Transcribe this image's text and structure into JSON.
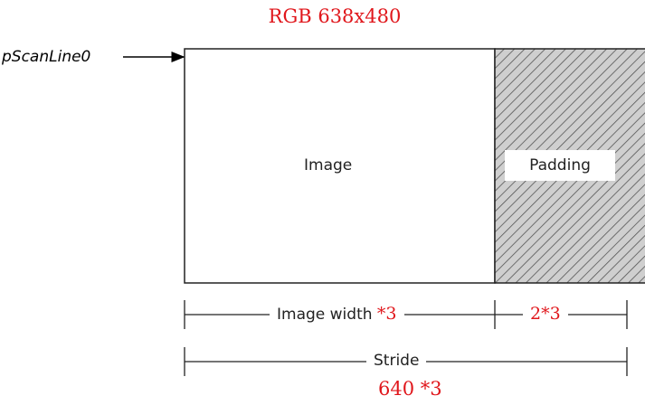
{
  "title": "RGB 638x480",
  "pointer_label": "pScanLine0",
  "regions": {
    "image_label": "Image",
    "padding_label": "Padding"
  },
  "dimensions": {
    "image_width_label": "Image width",
    "image_width_multiplier": "*3",
    "padding_width": "2*3",
    "stride_label": "Stride",
    "stride_value": "640 *3"
  }
}
